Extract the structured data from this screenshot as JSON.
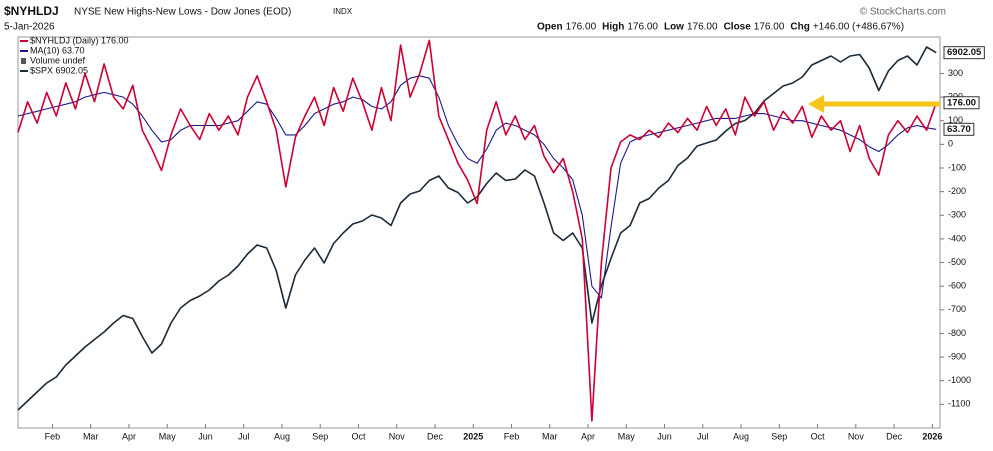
{
  "chart_data": {
    "type": "line",
    "symbol": "$NYHLDJ",
    "title": "NYSE New Highs-New Lows - Dow Jones (EOD)",
    "exchange": "INDX",
    "date": "5-Jan-2026",
    "credit": "© StockCharts.com",
    "quote": [
      {
        "label": "Open",
        "text": "176.00"
      },
      {
        "label": "High",
        "text": "176.00"
      },
      {
        "label": "Low",
        "text": "176.00"
      },
      {
        "label": "Close",
        "text": "176.00"
      },
      {
        "label": "Chg",
        "text": "+146.00 (+486.67%)"
      }
    ],
    "legend_extra": "Volume undef",
    "grid": false,
    "xlim": [
      0.1,
      24.2
    ],
    "xticks": [
      {
        "value": 1,
        "label": "Feb"
      },
      {
        "value": 2,
        "label": "Mar"
      },
      {
        "value": 3,
        "label": "Apr"
      },
      {
        "value": 4,
        "label": "May"
      },
      {
        "value": 5,
        "label": "Jun"
      },
      {
        "value": 6,
        "label": "Jul"
      },
      {
        "value": 7,
        "label": "Aug"
      },
      {
        "value": 8,
        "label": "Sep"
      },
      {
        "value": 9,
        "label": "Oct"
      },
      {
        "value": 10,
        "label": "Nov"
      },
      {
        "value": 11,
        "label": "Dec"
      },
      {
        "value": 12,
        "label": "2025"
      },
      {
        "value": 13,
        "label": "Feb"
      },
      {
        "value": 14,
        "label": "Mar"
      },
      {
        "value": 15,
        "label": "Apr"
      },
      {
        "value": 16,
        "label": "May"
      },
      {
        "value": 17,
        "label": "Jun"
      },
      {
        "value": 18,
        "label": "Jul"
      },
      {
        "value": 19,
        "label": "Aug"
      },
      {
        "value": 20,
        "label": "Sep"
      },
      {
        "value": 21,
        "label": "Oct"
      },
      {
        "value": 22,
        "label": "Nov"
      },
      {
        "value": 23,
        "label": "Dec"
      },
      {
        "value": 24,
        "label": "2026"
      }
    ],
    "ylim": [
      -1200,
      450
    ],
    "yticks": [
      300,
      200,
      100,
      0,
      -100,
      -200,
      -300,
      -400,
      -500,
      -600,
      -700,
      -800,
      -900,
      -1000,
      -1100
    ],
    "y2lim": [
      4400,
      7000
    ],
    "x": [
      0.1,
      0.35,
      0.6,
      0.85,
      1.1,
      1.35,
      1.6,
      1.85,
      2.1,
      2.35,
      2.6,
      2.85,
      3.1,
      3.35,
      3.6,
      3.85,
      4.1,
      4.35,
      4.6,
      4.85,
      5.1,
      5.35,
      5.6,
      5.85,
      6.1,
      6.35,
      6.6,
      6.85,
      7.1,
      7.35,
      7.6,
      7.85,
      8.1,
      8.35,
      8.6,
      8.85,
      9.1,
      9.35,
      9.6,
      9.85,
      10.1,
      10.35,
      10.6,
      10.85,
      11.1,
      11.35,
      11.6,
      11.85,
      12.1,
      12.35,
      12.6,
      12.85,
      13.1,
      13.35,
      13.6,
      13.85,
      14.1,
      14.35,
      14.6,
      14.85,
      15.1,
      15.35,
      15.6,
      15.85,
      16.1,
      16.35,
      16.6,
      16.85,
      17.1,
      17.35,
      17.6,
      17.85,
      18.1,
      18.35,
      18.6,
      18.85,
      19.1,
      19.35,
      19.6,
      19.85,
      20.1,
      20.35,
      20.6,
      20.85,
      21.1,
      21.35,
      21.6,
      21.85,
      22.1,
      22.35,
      22.6,
      22.85,
      23.1,
      23.35,
      23.6,
      23.85,
      24.1
    ],
    "series": [
      {
        "name": "$SPX 6902.05",
        "color": "#1c2b3a",
        "axis": "y2",
        "values": [
          4520,
          4580,
          4640,
          4700,
          4740,
          4820,
          4880,
          4940,
          4990,
          5040,
          5100,
          5150,
          5130,
          5010,
          4900,
          4960,
          5100,
          5200,
          5250,
          5280,
          5320,
          5380,
          5420,
          5480,
          5560,
          5620,
          5600,
          5450,
          5200,
          5420,
          5520,
          5600,
          5500,
          5630,
          5700,
          5760,
          5780,
          5820,
          5800,
          5750,
          5900,
          5960,
          5980,
          6050,
          6080,
          6000,
          5970,
          5900,
          5940,
          6030,
          6100,
          6050,
          6060,
          6120,
          6080,
          5900,
          5700,
          5650,
          5700,
          5600,
          5100,
          5350,
          5530,
          5700,
          5750,
          5900,
          5930,
          6000,
          6050,
          6150,
          6200,
          6280,
          6300,
          6320,
          6380,
          6430,
          6450,
          6500,
          6580,
          6630,
          6680,
          6700,
          6740,
          6820,
          6850,
          6880,
          6840,
          6880,
          6890,
          6800,
          6650,
          6780,
          6850,
          6880,
          6820,
          6940,
          6902.05
        ]
      },
      {
        "name": "MA(10) 63.70",
        "color": "#1a1a8c",
        "last_label": "63.70",
        "values": [
          120,
          130,
          140,
          150,
          160,
          170,
          180,
          200,
          210,
          220,
          210,
          200,
          170,
          120,
          60,
          10,
          20,
          60,
          80,
          80,
          80,
          80,
          90,
          100,
          140,
          180,
          170,
          110,
          40,
          40,
          80,
          130,
          150,
          170,
          180,
          200,
          190,
          160,
          150,
          180,
          250,
          280,
          290,
          280,
          200,
          80,
          0,
          -60,
          -80,
          -20,
          60,
          90,
          80,
          60,
          40,
          0,
          -60,
          -100,
          -150,
          -300,
          -600,
          -650,
          -350,
          -80,
          10,
          30,
          40,
          50,
          60,
          70,
          80,
          90,
          100,
          110,
          110,
          110,
          120,
          130,
          130,
          120,
          110,
          100,
          100,
          90,
          80,
          70,
          60,
          40,
          20,
          -10,
          -30,
          0,
          40,
          70,
          80,
          70,
          63.7
        ]
      },
      {
        "name": "$NYHLDJ (Daily) 176.00",
        "color": "#cc0033",
        "last_label": "176.00",
        "values": [
          50,
          180,
          90,
          220,
          120,
          260,
          150,
          300,
          180,
          340,
          200,
          150,
          250,
          60,
          -20,
          -110,
          40,
          150,
          80,
          20,
          130,
          60,
          120,
          40,
          200,
          290,
          180,
          60,
          -180,
          30,
          120,
          200,
          80,
          240,
          140,
          280,
          180,
          60,
          240,
          100,
          420,
          200,
          300,
          440,
          120,
          20,
          -80,
          -150,
          -250,
          60,
          180,
          40,
          120,
          20,
          80,
          -50,
          -120,
          -60,
          -200,
          -400,
          -1170,
          -500,
          -100,
          10,
          40,
          20,
          60,
          30,
          90,
          50,
          110,
          60,
          160,
          80,
          150,
          40,
          200,
          120,
          180,
          60,
          140,
          90,
          160,
          30,
          120,
          60,
          100,
          -30,
          80,
          -60,
          -130,
          40,
          100,
          50,
          120,
          60,
          176
        ]
      }
    ]
  }
}
